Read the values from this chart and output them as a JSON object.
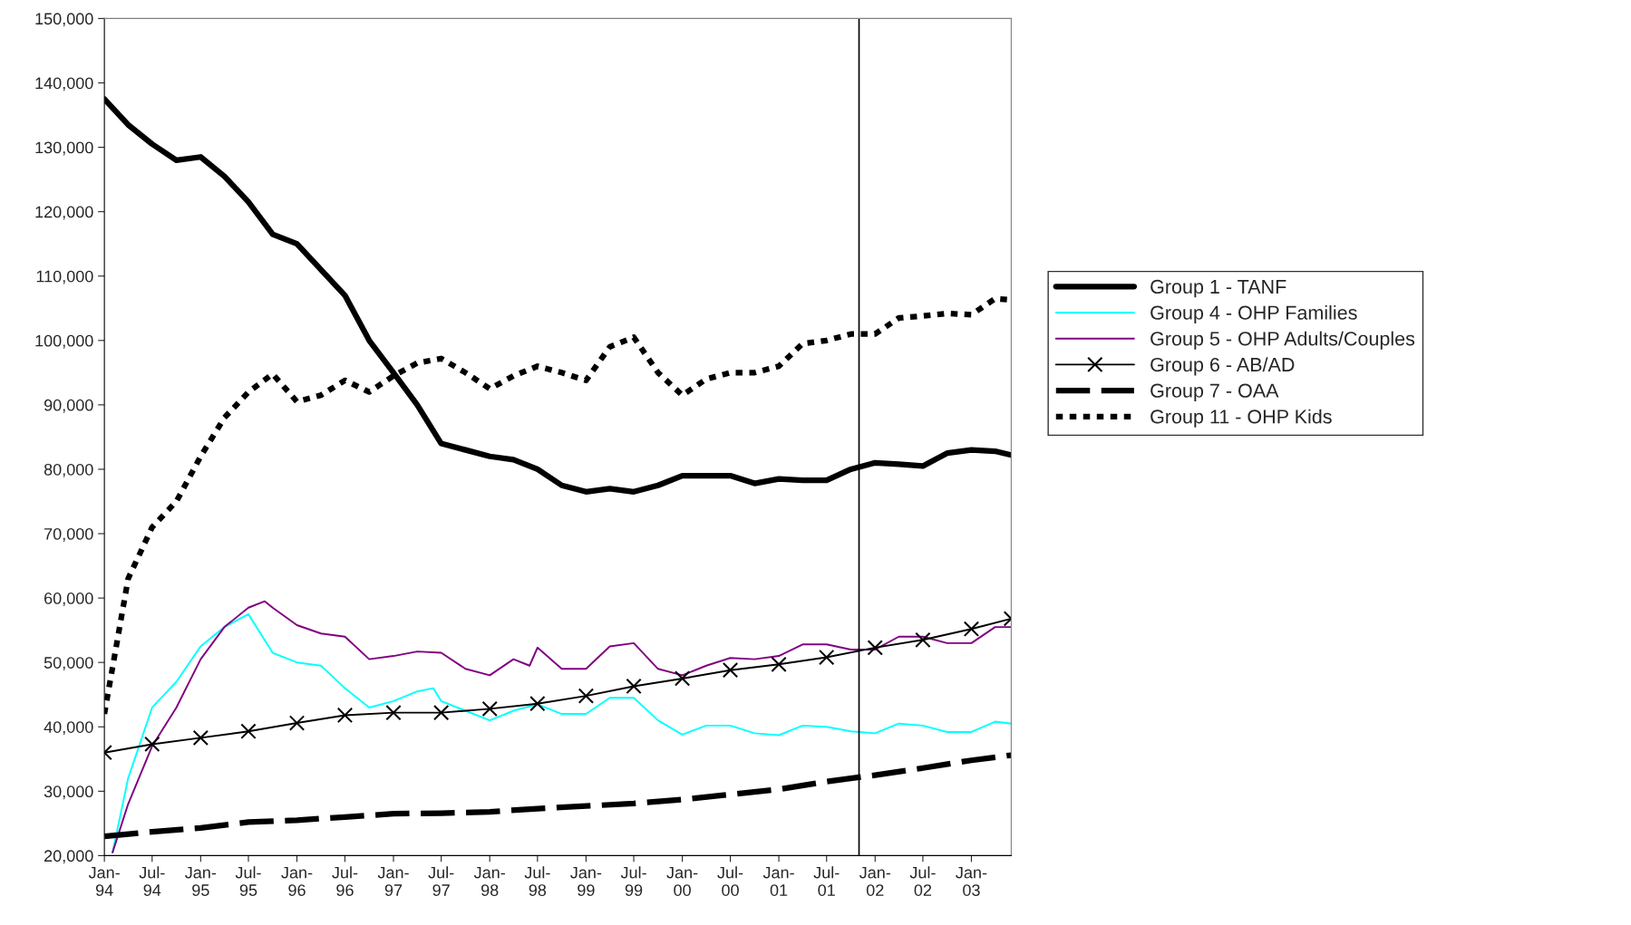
{
  "chart_data": {
    "type": "line",
    "xlim": [
      "1994-01",
      "2003-06"
    ],
    "ylim": [
      20000,
      150000
    ],
    "yticks": [
      {
        "value": 20000,
        "label": "20,000"
      },
      {
        "value": 30000,
        "label": "30,000"
      },
      {
        "value": 40000,
        "label": "40,000"
      },
      {
        "value": 50000,
        "label": "50,000"
      },
      {
        "value": 60000,
        "label": "60,000"
      },
      {
        "value": 70000,
        "label": "70,000"
      },
      {
        "value": 80000,
        "label": "80,000"
      },
      {
        "value": 90000,
        "label": "90,000"
      },
      {
        "value": 100000,
        "label": "100,000"
      },
      {
        "value": 110000,
        "label": "110,000"
      },
      {
        "value": 120000,
        "label": "120,000"
      },
      {
        "value": 130000,
        "label": "130,000"
      },
      {
        "value": 140000,
        "label": "140,000"
      },
      {
        "value": 150000,
        "label": "150,000"
      }
    ],
    "xticks": [
      {
        "value": "1994-01",
        "label": "Jan-\n94"
      },
      {
        "value": "1994-07",
        "label": "Jul-\n94"
      },
      {
        "value": "1995-01",
        "label": "Jan-\n95"
      },
      {
        "value": "1995-07",
        "label": "Jul-\n95"
      },
      {
        "value": "1996-01",
        "label": "Jan-\n96"
      },
      {
        "value": "1996-07",
        "label": "Jul-\n96"
      },
      {
        "value": "1997-01",
        "label": "Jan-\n97"
      },
      {
        "value": "1997-07",
        "label": "Jul-\n97"
      },
      {
        "value": "1998-01",
        "label": "Jan-\n98"
      },
      {
        "value": "1998-07",
        "label": "Jul-\n98"
      },
      {
        "value": "1999-01",
        "label": "Jan-\n99"
      },
      {
        "value": "1999-07",
        "label": "Jul-\n99"
      },
      {
        "value": "2000-01",
        "label": "Jan-\n00"
      },
      {
        "value": "2000-07",
        "label": "Jul-\n00"
      },
      {
        "value": "2001-01",
        "label": "Jan-\n01"
      },
      {
        "value": "2001-07",
        "label": "Jul-\n01"
      },
      {
        "value": "2002-01",
        "label": "Jan-\n02"
      },
      {
        "value": "2002-07",
        "label": "Jul-\n02"
      },
      {
        "value": "2003-01",
        "label": "Jan-\n03"
      }
    ],
    "grid": false,
    "legend": "right",
    "ref_lines": [
      {
        "axis": "x",
        "value": "2001-11",
        "color": "#000000",
        "line_style": "solid"
      }
    ],
    "series": [
      {
        "name": "Group 1 - TANF",
        "color": "#000000",
        "line_style": "solid",
        "marker": "none",
        "x": [
          "1994-01",
          "1994-04",
          "1994-07",
          "1994-10",
          "1995-01",
          "1995-04",
          "1995-07",
          "1995-10",
          "1996-01",
          "1996-04",
          "1996-07",
          "1996-10",
          "1997-01",
          "1997-04",
          "1997-07",
          "1997-10",
          "1998-01",
          "1998-04",
          "1998-07",
          "1998-10",
          "1999-01",
          "1999-04",
          "1999-07",
          "1999-10",
          "2000-01",
          "2000-04",
          "2000-07",
          "2000-10",
          "2001-01",
          "2001-04",
          "2001-07",
          "2001-10",
          "2002-01",
          "2002-04",
          "2002-07",
          "2002-10",
          "2003-01",
          "2003-04",
          "2003-06"
        ],
        "values": [
          137500,
          133500,
          130500,
          128000,
          128500,
          125500,
          121500,
          116500,
          115000,
          111000,
          107000,
          100000,
          95000,
          90000,
          84000,
          83000,
          82000,
          81500,
          80000,
          77500,
          76500,
          77000,
          76500,
          77500,
          79000,
          79000,
          79000,
          77800,
          78500,
          78300,
          78300,
          80000,
          81000,
          80800,
          80500,
          82500,
          83000,
          82800,
          82200
        ]
      },
      {
        "name": "Group 4 - OHP Families",
        "color": "#00ffff",
        "line_style": "solid",
        "marker": "none",
        "x": [
          "1994-02",
          "1994-04",
          "1994-07",
          "1994-10",
          "1995-01",
          "1995-04",
          "1995-07",
          "1995-10",
          "1996-01",
          "1996-04",
          "1996-07",
          "1996-10",
          "1997-01",
          "1997-04",
          "1997-06",
          "1997-07",
          "1997-10",
          "1998-01",
          "1998-04",
          "1998-07",
          "1998-10",
          "1999-01",
          "1999-04",
          "1999-07",
          "1999-10",
          "2000-01",
          "2000-04",
          "2000-07",
          "2000-10",
          "2001-01",
          "2001-04",
          "2001-07",
          "2001-10",
          "2002-01",
          "2002-04",
          "2002-07",
          "2002-10",
          "2003-01",
          "2003-04",
          "2003-06"
        ],
        "values": [
          20500,
          32000,
          43000,
          47000,
          52500,
          55500,
          57500,
          51500,
          50000,
          49500,
          46000,
          43000,
          44000,
          45500,
          46000,
          44000,
          42500,
          41000,
          42500,
          43500,
          42000,
          42000,
          44500,
          44500,
          41000,
          38800,
          40200,
          40200,
          39000,
          38700,
          40200,
          40000,
          39300,
          39000,
          40500,
          40200,
          39200,
          39200,
          40800,
          40500
        ]
      },
      {
        "name": "Group 5 - OHP Adults/Couples",
        "color": "#800080",
        "line_style": "solid",
        "marker": "none",
        "x": [
          "1994-02",
          "1994-04",
          "1994-07",
          "1994-10",
          "1995-01",
          "1995-04",
          "1995-07",
          "1995-09",
          "1995-10",
          "1996-01",
          "1996-04",
          "1996-07",
          "1996-10",
          "1997-01",
          "1997-04",
          "1997-07",
          "1997-10",
          "1998-01",
          "1998-04",
          "1998-06",
          "1998-07",
          "1998-10",
          "1999-01",
          "1999-04",
          "1999-07",
          "1999-10",
          "2000-01",
          "2000-04",
          "2000-07",
          "2000-10",
          "2001-01",
          "2001-04",
          "2001-07",
          "2001-10",
          "2002-01",
          "2002-04",
          "2002-07",
          "2002-10",
          "2003-01",
          "2003-04",
          "2003-06"
        ],
        "values": [
          20500,
          28000,
          37000,
          43000,
          50500,
          55500,
          58500,
          59500,
          58500,
          55800,
          54500,
          54000,
          50500,
          51000,
          51700,
          51500,
          49000,
          48000,
          50500,
          49500,
          52300,
          49000,
          49000,
          52500,
          53000,
          49000,
          48000,
          49500,
          50700,
          50500,
          51000,
          52800,
          52800,
          52000,
          52000,
          54000,
          54000,
          53000,
          53000,
          55500,
          55500
        ]
      },
      {
        "name": "Group 6 - AB/AD",
        "color": "#000000",
        "line_style": "solid",
        "marker": "cross",
        "x": [
          "1994-01",
          "1994-07",
          "1995-01",
          "1995-07",
          "1996-01",
          "1996-07",
          "1997-01",
          "1997-07",
          "1998-01",
          "1998-07",
          "1999-01",
          "1999-07",
          "2000-01",
          "2000-07",
          "2001-01",
          "2001-07",
          "2002-01",
          "2002-07",
          "2003-01",
          "2003-06"
        ],
        "values": [
          36000,
          37300,
          38300,
          39300,
          40600,
          41800,
          42200,
          42200,
          42800,
          43600,
          44800,
          46300,
          47500,
          48800,
          49700,
          50800,
          52300,
          53500,
          55200,
          56800
        ]
      },
      {
        "name": "Group 7 - OAA",
        "color": "#000000",
        "line_style": "dashed",
        "marker": "none",
        "x": [
          "1994-01",
          "1994-07",
          "1995-01",
          "1995-07",
          "1996-01",
          "1996-07",
          "1997-01",
          "1997-07",
          "1998-01",
          "1998-07",
          "1999-01",
          "1999-07",
          "2000-01",
          "2000-07",
          "2001-01",
          "2001-07",
          "2002-01",
          "2002-07",
          "2003-01",
          "2003-06"
        ],
        "values": [
          23000,
          23700,
          24300,
          25200,
          25500,
          26000,
          26500,
          26600,
          26800,
          27300,
          27700,
          28100,
          28700,
          29500,
          30300,
          31500,
          32500,
          33600,
          34800,
          35600
        ]
      },
      {
        "name": "Group 11 - OHP Kids",
        "color": "#000000",
        "line_style": "dotted",
        "marker": "none",
        "x": [
          "1994-01",
          "1994-04",
          "1994-07",
          "1994-10",
          "1995-01",
          "1995-04",
          "1995-07",
          "1995-10",
          "1996-01",
          "1996-04",
          "1996-07",
          "1996-10",
          "1997-01",
          "1997-04",
          "1997-07",
          "1997-10",
          "1998-01",
          "1998-04",
          "1998-07",
          "1998-10",
          "1999-01",
          "1999-04",
          "1999-07",
          "1999-10",
          "2000-01",
          "2000-04",
          "2000-07",
          "2000-10",
          "2001-01",
          "2001-04",
          "2001-07",
          "2001-10",
          "2002-01",
          "2002-04",
          "2002-07",
          "2002-10",
          "2003-01",
          "2003-04",
          "2003-06"
        ],
        "values": [
          42000,
          63000,
          71000,
          75000,
          82000,
          88000,
          92000,
          94800,
          90500,
          91500,
          93800,
          92000,
          94500,
          96500,
          97200,
          95000,
          92500,
          94500,
          96000,
          95000,
          93800,
          99000,
          100500,
          95000,
          91500,
          94000,
          95000,
          95000,
          96000,
          99500,
          100000,
          101000,
          101000,
          103500,
          103800,
          104200,
          104000,
          106500,
          106300
        ]
      }
    ]
  }
}
